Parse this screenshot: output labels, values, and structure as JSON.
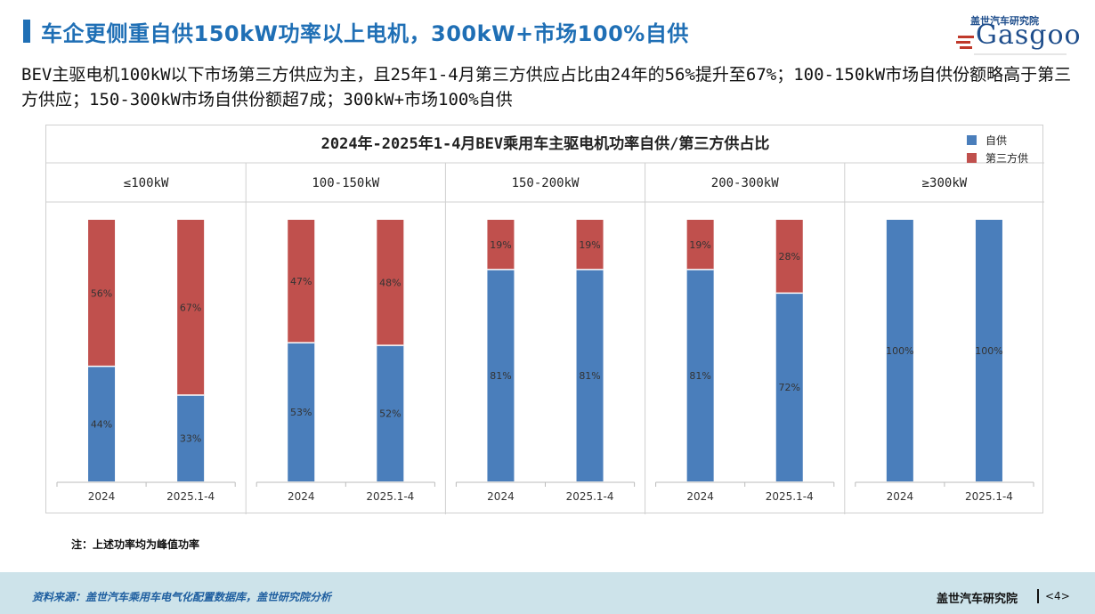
{
  "header": {
    "title": "车企更侧重自供150kW功率以上电机，300kW+市场100%自供",
    "logo_cn": "盖世汽车研究院",
    "logo_en": "Gasgoo"
  },
  "subtitle": "BEV主驱电机100kW以下市场第三方供应为主，且25年1-4月第三方供应占比由24年的56%提升至67%；100-150kW市场自供份额略高于第三方供应；150-300kW市场自供份额超7成；300kW+市场100%自供",
  "chart_data": {
    "type": "bar",
    "stacked": true,
    "percent": true,
    "title": "2024年-2025年1-4月BEV乘用车主驱电机功率自供/第三方供占比",
    "legend_position": "top-right",
    "categories": [
      "2024",
      "2025.1-4"
    ],
    "panels": [
      {
        "label": "≤100kW",
        "self": [
          44,
          33
        ],
        "third": [
          56,
          67
        ]
      },
      {
        "label": "100-150kW",
        "self": [
          53,
          52
        ],
        "third": [
          47,
          48
        ]
      },
      {
        "label": "150-200kW",
        "self": [
          81,
          81
        ],
        "third": [
          19,
          19
        ]
      },
      {
        "label": "200-300kW",
        "self": [
          81,
          72
        ],
        "third": [
          19,
          28
        ]
      },
      {
        "label": "≥300kW",
        "self": [
          100,
          100
        ],
        "third": [
          0,
          0
        ]
      }
    ],
    "series": [
      {
        "name": "自供",
        "color": "#4a7ebb"
      },
      {
        "name": "第三方供",
        "color": "#c0504d"
      }
    ],
    "ylim": [
      0,
      100
    ]
  },
  "note": "注：上述功率均为峰值功率",
  "footer": {
    "source": "资料来源：盖世汽车乘用车电气化配置数据库，盖世研究院分析",
    "brand": "盖世汽车研究院",
    "page": "<4>"
  }
}
